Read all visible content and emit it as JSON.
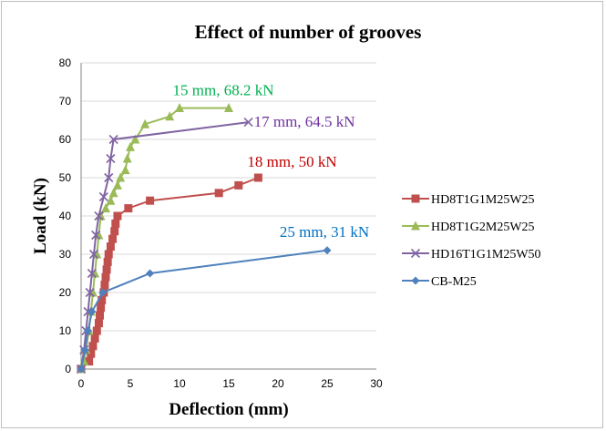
{
  "chart_data": {
    "type": "line",
    "title": "Effect of number of grooves",
    "xlabel": "Deflection (mm)",
    "ylabel": "Load (kN)",
    "xlim": [
      0,
      30
    ],
    "ylim": [
      0,
      80
    ],
    "x_ticks": [
      "0",
      "5",
      "10",
      "15",
      "20",
      "25",
      "30"
    ],
    "y_ticks": [
      "0",
      "10",
      "20",
      "30",
      "40",
      "50",
      "60",
      "70",
      "80"
    ],
    "grid": "horizontal",
    "legend_position": "right",
    "series": [
      {
        "name": "HD8T1G1M25W25",
        "color": "#c0504d",
        "marker": "square",
        "points": [
          [
            0,
            0
          ],
          [
            0.8,
            2
          ],
          [
            1,
            4
          ],
          [
            1.2,
            6
          ],
          [
            1.4,
            8
          ],
          [
            1.6,
            10
          ],
          [
            1.8,
            12
          ],
          [
            1.9,
            14
          ],
          [
            2,
            16
          ],
          [
            2.1,
            18
          ],
          [
            2.3,
            20
          ],
          [
            2.4,
            22
          ],
          [
            2.5,
            24
          ],
          [
            2.6,
            26
          ],
          [
            2.7,
            28
          ],
          [
            2.8,
            30
          ],
          [
            3,
            32
          ],
          [
            3.2,
            34
          ],
          [
            3.4,
            36
          ],
          [
            3.5,
            38
          ],
          [
            3.7,
            40
          ],
          [
            4.8,
            42
          ],
          [
            7,
            44
          ],
          [
            14,
            46
          ],
          [
            16,
            48
          ],
          [
            18,
            50
          ]
        ]
      },
      {
        "name": "HD8T1G2M25W25",
        "color": "#9bbb59",
        "marker": "triangle",
        "points": [
          [
            0,
            0
          ],
          [
            0.3,
            2
          ],
          [
            0.5,
            5
          ],
          [
            0.8,
            10
          ],
          [
            1,
            15
          ],
          [
            1.2,
            20
          ],
          [
            1.4,
            25
          ],
          [
            1.6,
            30
          ],
          [
            1.8,
            35
          ],
          [
            2,
            40
          ],
          [
            2.5,
            42
          ],
          [
            3,
            44
          ],
          [
            3.3,
            46
          ],
          [
            3.7,
            48
          ],
          [
            4,
            50
          ],
          [
            4.5,
            52
          ],
          [
            4.7,
            55
          ],
          [
            5,
            58
          ],
          [
            5.5,
            60
          ],
          [
            6.5,
            64
          ],
          [
            9,
            66
          ],
          [
            10,
            68.2
          ],
          [
            15,
            68.2
          ]
        ]
      },
      {
        "name": "HD16T1G1M25W50",
        "color": "#8064a2",
        "marker": "x",
        "points": [
          [
            0,
            0
          ],
          [
            0.3,
            5
          ],
          [
            0.5,
            10
          ],
          [
            0.7,
            15
          ],
          [
            0.9,
            20
          ],
          [
            1.1,
            25
          ],
          [
            1.3,
            30
          ],
          [
            1.5,
            35
          ],
          [
            1.8,
            40
          ],
          [
            2.3,
            45
          ],
          [
            2.8,
            50
          ],
          [
            3,
            55
          ],
          [
            3.3,
            60
          ],
          [
            17,
            64.5
          ]
        ]
      },
      {
        "name": "CB-M25",
        "color": "#4f81bd",
        "marker": "diamond",
        "points": [
          [
            0,
            0
          ],
          [
            0.4,
            5
          ],
          [
            0.7,
            10
          ],
          [
            1.1,
            15
          ],
          [
            2.2,
            20
          ],
          [
            7,
            25
          ],
          [
            25,
            31
          ]
        ]
      }
    ],
    "annotations": [
      {
        "text": "15 mm, 68.2 kN",
        "color": "#00b050",
        "x": 15,
        "y": 68.2
      },
      {
        "text": "17 mm, 64.5 kN",
        "color": "#7030a0",
        "x": 17,
        "y": 64.5
      },
      {
        "text": "18 mm, 50 kN",
        "color": "#c00000",
        "x": 18,
        "y": 50
      },
      {
        "text": "25 mm, 31 kN",
        "color": "#0070c0",
        "x": 25,
        "y": 31
      }
    ]
  }
}
